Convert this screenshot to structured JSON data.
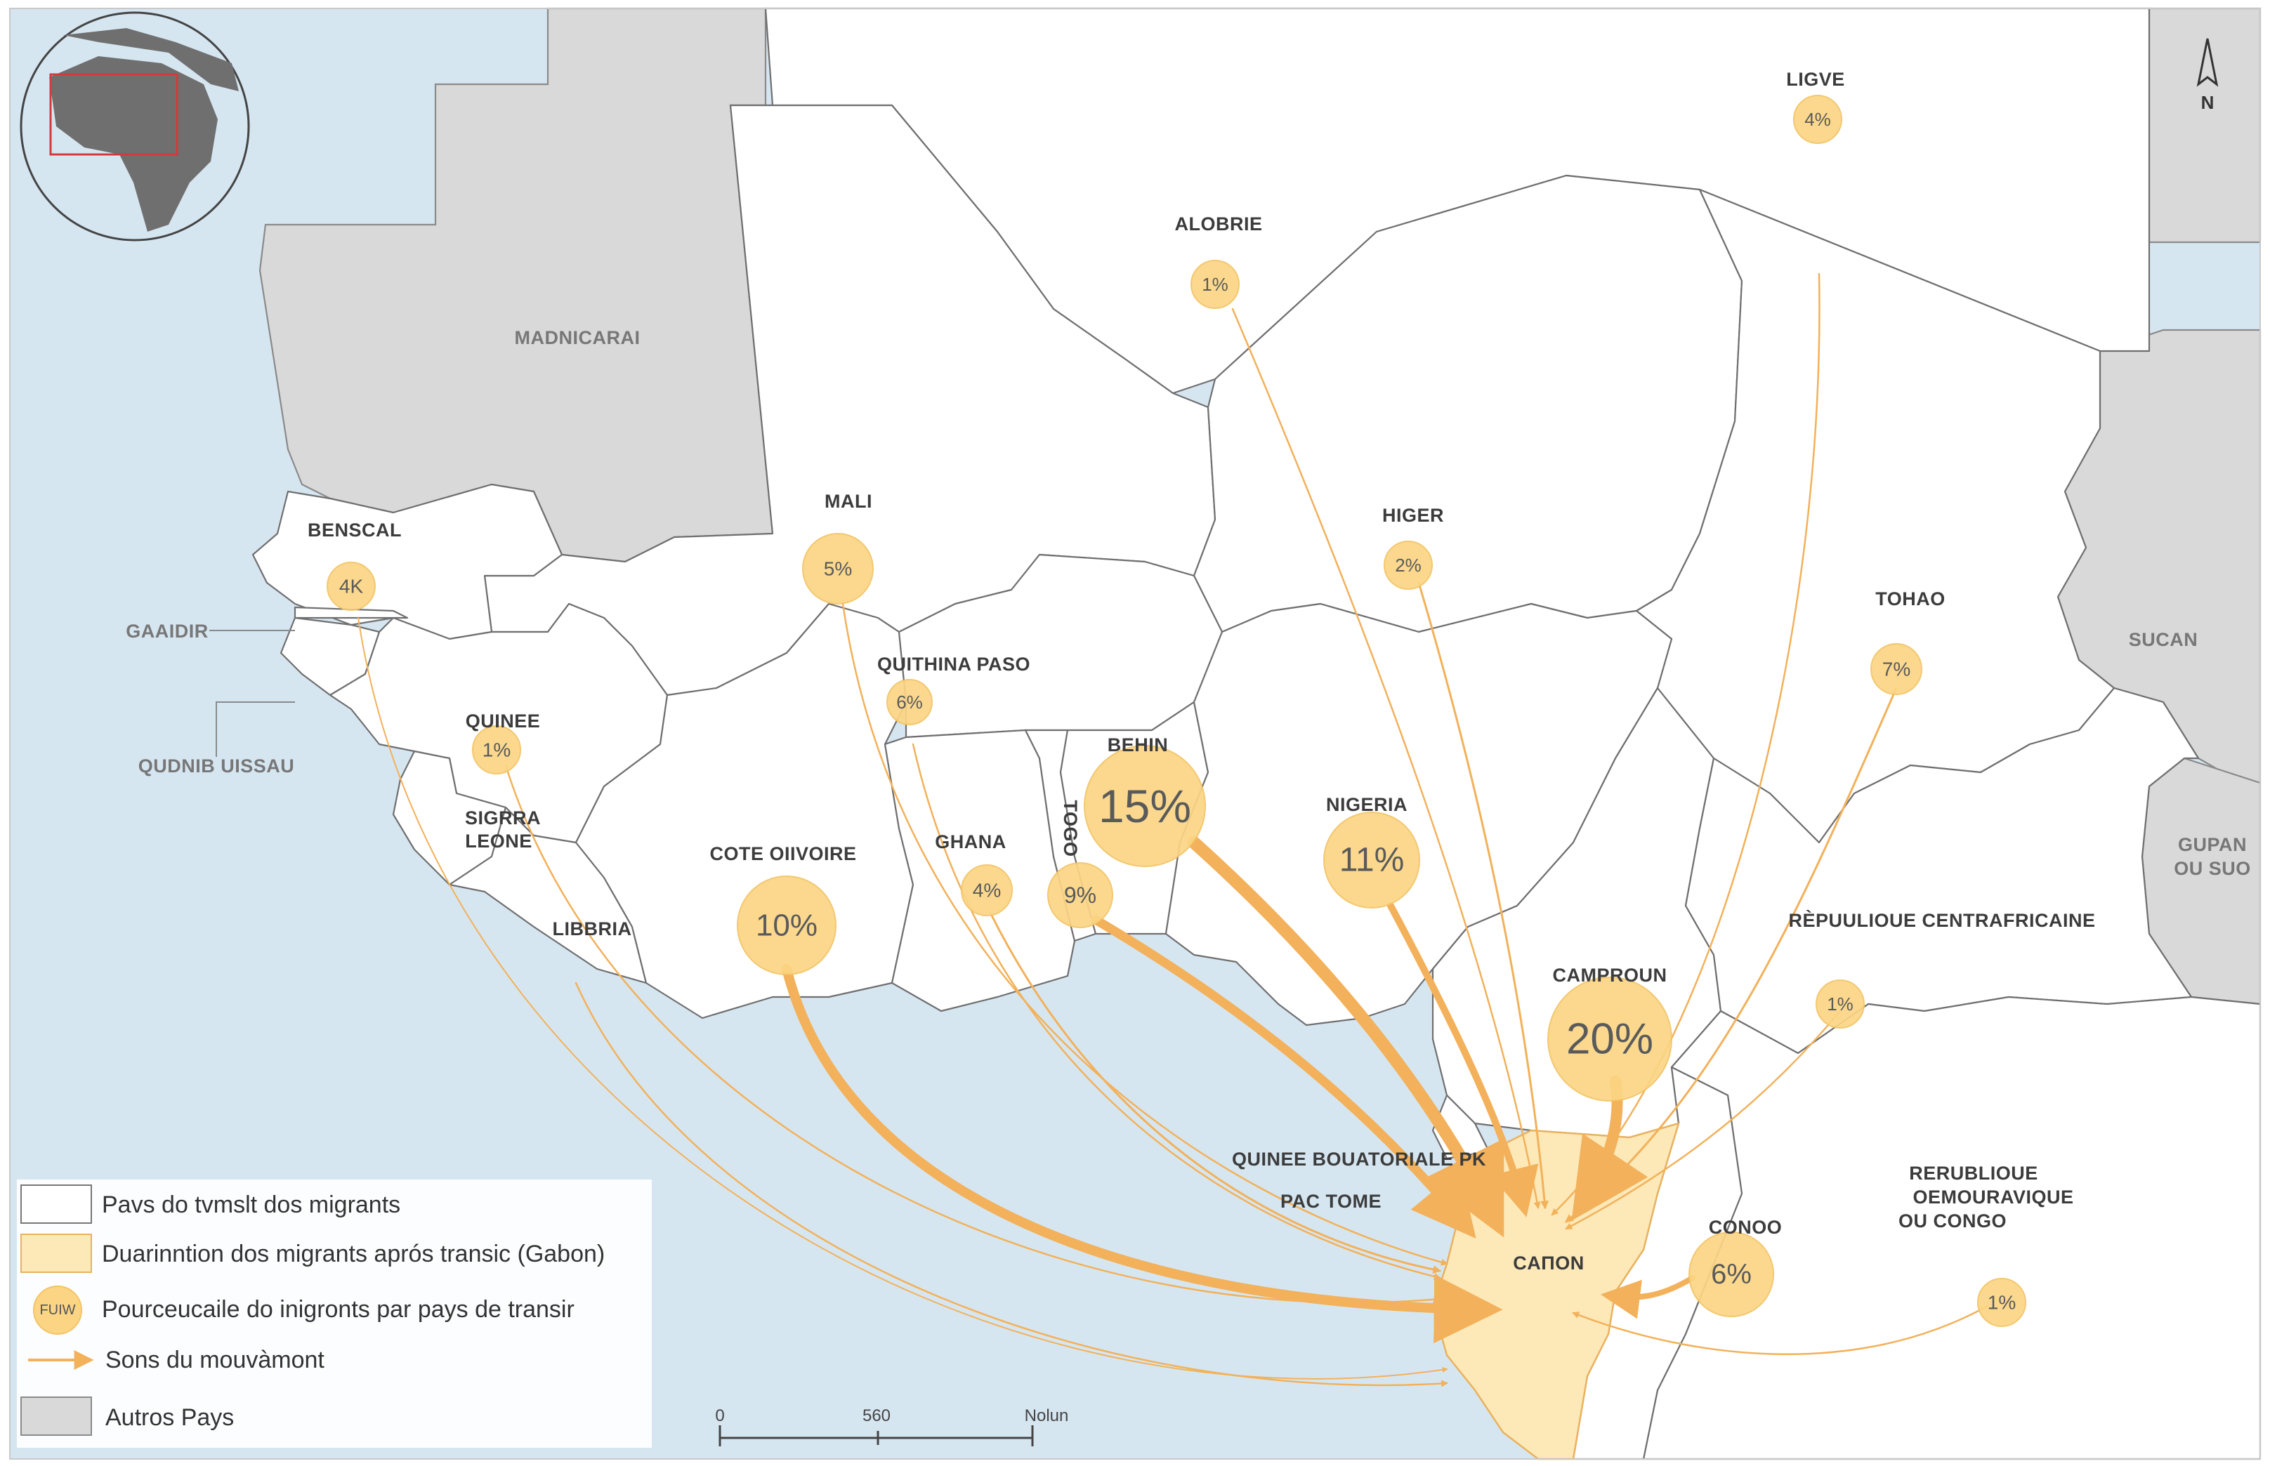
{
  "countries": [
    {
      "id": "morocco",
      "label": "LIGVE",
      "pct": "4%"
    },
    {
      "id": "algeria",
      "label": "ALOBRIE",
      "pct": "1%"
    },
    {
      "id": "mauritania",
      "label": "MADNICARAI",
      "pct": ""
    },
    {
      "id": "mali",
      "label": "MALI",
      "pct": "5%"
    },
    {
      "id": "niger",
      "label": "HIGER",
      "pct": "2%"
    },
    {
      "id": "chad",
      "label": "TOHAO",
      "pct": "7%"
    },
    {
      "id": "sudan",
      "label": "SUCAN",
      "pct": ""
    },
    {
      "id": "senegal",
      "label": "BENSCAL",
      "pct": "4K"
    },
    {
      "id": "gambia",
      "label": "GAAIDIR",
      "pct": ""
    },
    {
      "id": "guinea-bissau",
      "label": "QUDNIB UISSAU",
      "pct": ""
    },
    {
      "id": "guinea",
      "label": "QUINEE",
      "pct": "1%"
    },
    {
      "id": "sierra-leone",
      "label": "SIGRRA LEONE",
      "pct": ""
    },
    {
      "id": "liberia",
      "label": "LIBBRIA",
      "pct": ""
    },
    {
      "id": "cote-divoire",
      "label": "COTE OIIVOIRE",
      "pct": "10%"
    },
    {
      "id": "burkina",
      "label": "QUITHINA PASO",
      "pct": "6%"
    },
    {
      "id": "ghana",
      "label": "GHANA",
      "pct": "4%"
    },
    {
      "id": "togo",
      "label": "TOGO",
      "pct": "9%"
    },
    {
      "id": "benin",
      "label": "BEHIN",
      "pct": "15%"
    },
    {
      "id": "nigeria",
      "label": "NIGERIA",
      "pct": "11%"
    },
    {
      "id": "cameroon",
      "label": "CAMPROUN",
      "pct": "20%"
    },
    {
      "id": "car",
      "label": "RÈPUULIOUE CENTRAFRICAINE",
      "pct": "1%"
    },
    {
      "id": "south-sudan",
      "label": "GUPAN OU SUO",
      "pct": ""
    },
    {
      "id": "eq-guinea",
      "label": "QUINEE BOUATORIALE PK",
      "pct": ""
    },
    {
      "id": "sao-tome",
      "label": "PAC TOME",
      "pct": ""
    },
    {
      "id": "gabon",
      "label": "CAПON",
      "pct": ""
    },
    {
      "id": "congo",
      "label": "CONOO",
      "pct": "6%"
    },
    {
      "id": "drc",
      "label": "RERUBLIOUE OEMOURAVIQUE OU CONGO",
      "pct": "1%"
    }
  ],
  "legend": {
    "items": [
      {
        "label": "Pavs do tvmslt dos migrants",
        "swatch": "#ffffff"
      },
      {
        "label": "Duarinntion dos migrants aprós transic (Gabon)",
        "swatch": "#fde8b8"
      },
      {
        "label": "Pourceucaile do inigronts par pays de transir",
        "symbol_text": "FUIW"
      },
      {
        "label": "Sons du mouvàmont",
        "symbol": "arrow"
      },
      {
        "label": "Autros Pays",
        "swatch": "#d9d9d9"
      }
    ]
  },
  "scale": {
    "ticks": [
      "0",
      "560",
      "Nolun"
    ]
  },
  "north": {
    "label": "N"
  },
  "colors": {
    "ocean": "#d6e6f1",
    "bubble": "#fbd584",
    "flow": "#f2b15a",
    "destination": "#fde8b8",
    "other": "#d9d9d9"
  }
}
